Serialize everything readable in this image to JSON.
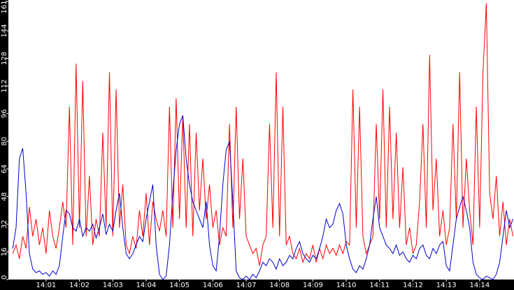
{
  "chart_data": {
    "type": "line",
    "x": [
      0,
      0.1,
      0.2,
      0.3,
      0.4,
      0.5,
      0.6,
      0.7,
      0.8,
      0.9,
      1,
      1.1,
      1.2,
      1.3,
      1.4,
      1.5,
      1.6,
      1.7,
      1.8,
      1.9,
      2,
      2.1,
      2.2,
      2.3,
      2.4,
      2.5,
      2.6,
      2.7,
      2.8,
      2.9,
      3,
      3.1,
      3.2,
      3.3,
      3.4,
      3.5,
      3.6,
      3.7,
      3.8,
      3.9,
      4,
      4.1,
      4.2,
      4.3,
      4.4,
      4.5,
      4.6,
      4.7,
      4.8,
      4.9,
      5,
      5.1,
      5.2,
      5.3,
      5.4,
      5.5,
      5.6,
      5.7,
      5.8,
      5.9,
      6,
      6.1,
      6.2,
      6.3,
      6.4,
      6.5,
      6.6,
      6.7,
      6.8,
      6.9,
      7,
      7.1,
      7.2,
      7.3,
      7.4,
      7.5,
      7.6,
      7.7,
      7.8,
      7.9,
      8,
      8.1,
      8.2,
      8.3,
      8.4,
      8.5,
      8.6,
      8.7,
      8.8,
      8.9,
      9,
      9.1,
      9.2,
      9.3,
      9.4,
      9.5,
      9.6,
      9.7,
      9.8,
      9.9,
      10,
      10.1,
      10.2,
      10.3,
      10.4,
      10.5,
      10.6,
      10.7,
      10.8,
      10.9,
      11,
      11.1,
      11.2,
      11.3,
      11.4,
      11.5,
      11.6,
      11.7,
      11.8,
      11.9,
      12,
      12.1,
      12.2,
      12.3,
      12.4,
      12.5,
      12.6,
      12.7,
      12.8,
      12.9,
      13,
      13.1,
      13.2,
      13.3,
      13.4,
      13.5,
      13.6,
      13.7,
      13.8,
      13.9,
      14,
      14.1,
      14.2,
      14.3,
      14.4,
      14.5,
      14.6,
      14.7,
      14.8,
      14.9,
      15
    ],
    "series": [
      {
        "color": "#ff0000",
        "values": [
          15,
          20,
          12,
          25,
          18,
          42,
          25,
          35,
          20,
          30,
          15,
          40,
          25,
          18,
          30,
          45,
          30,
          100,
          20,
          125,
          30,
          115,
          25,
          60,
          20,
          35,
          25,
          85,
          30,
          120,
          25,
          110,
          30,
          55,
          20,
          15,
          25,
          18,
          40,
          25,
          50,
          20,
          45,
          35,
          28,
          40,
          25,
          100,
          30,
          105,
          35,
          95,
          30,
          90,
          25,
          85,
          40,
          70,
          35,
          55,
          30,
          40,
          20,
          30,
          25,
          90,
          30,
          100,
          35,
          70,
          25,
          20,
          15,
          18,
          8,
          20,
          25,
          90,
          30,
          120,
          25,
          100,
          20,
          25,
          15,
          12,
          18,
          10,
          15,
          12,
          20,
          10,
          18,
          12,
          20,
          15,
          18,
          14,
          20,
          15,
          22,
          20,
          110,
          30,
          100,
          25,
          15,
          20,
          25,
          90,
          35,
          110,
          30,
          100,
          35,
          85,
          30,
          65,
          20,
          30,
          15,
          20,
          45,
          90,
          30,
          130,
          40,
          70,
          25,
          40,
          20,
          30,
          90,
          35,
          120,
          30,
          70,
          40,
          20,
          100,
          30,
          120,
          160,
          50,
          35,
          60,
          25,
          45,
          20,
          35,
          25
        ]
      },
      {
        "color": "#0000cc",
        "values": [
          18,
          30,
          70,
          76,
          50,
          15,
          6,
          4,
          5,
          3,
          4,
          2,
          5,
          3,
          8,
          25,
          40,
          38,
          30,
          28,
          35,
          25,
          30,
          28,
          32,
          24,
          30,
          38,
          26,
          32,
          28,
          40,
          50,
          30,
          15,
          12,
          15,
          20,
          25,
          22,
          35,
          45,
          55,
          20,
          3,
          0,
          2,
          20,
          50,
          75,
          90,
          95,
          70,
          55,
          45,
          40,
          35,
          30,
          45,
          20,
          8,
          5,
          25,
          55,
          75,
          80,
          45,
          5,
          1,
          0,
          2,
          0,
          3,
          1,
          5,
          10,
          8,
          12,
          10,
          6,
          12,
          8,
          10,
          14,
          12,
          18,
          22,
          15,
          12,
          10,
          14,
          12,
          18,
          25,
          35,
          30,
          32,
          40,
          44,
          38,
          20,
          12,
          6,
          4,
          8,
          6,
          12,
          20,
          35,
          48,
          30,
          25,
          20,
          18,
          15,
          20,
          14,
          16,
          12,
          10,
          14,
          12,
          18,
          20,
          14,
          12,
          18,
          15,
          20,
          22,
          8,
          5,
          20,
          35,
          42,
          48,
          40,
          30,
          10,
          3,
          1,
          0,
          2,
          1,
          0,
          3,
          10,
          25,
          40,
          30,
          35
        ]
      }
    ],
    "xlim": [
      -0.13,
      15.03
    ],
    "xticks": [
      {
        "value": 1,
        "label": "14:01"
      },
      {
        "value": 2,
        "label": "14:02"
      },
      {
        "value": 3,
        "label": "14:03"
      },
      {
        "value": 4,
        "label": "14:04"
      },
      {
        "value": 5,
        "label": "14:05"
      },
      {
        "value": 6,
        "label": "14:06"
      },
      {
        "value": 7,
        "label": "14:07"
      },
      {
        "value": 8,
        "label": "14:08"
      },
      {
        "value": 9,
        "label": "14:09"
      },
      {
        "value": 10,
        "label": "14:10"
      },
      {
        "value": 11,
        "label": "14:11"
      },
      {
        "value": 12,
        "label": "14:12"
      },
      {
        "value": 13,
        "label": "14:13"
      },
      {
        "value": 14,
        "label": "14:14"
      }
    ],
    "ylim": [
      0,
      161
    ],
    "yticks": [
      0,
      16,
      32,
      48,
      64,
      80,
      96,
      112,
      128,
      144,
      161
    ]
  }
}
